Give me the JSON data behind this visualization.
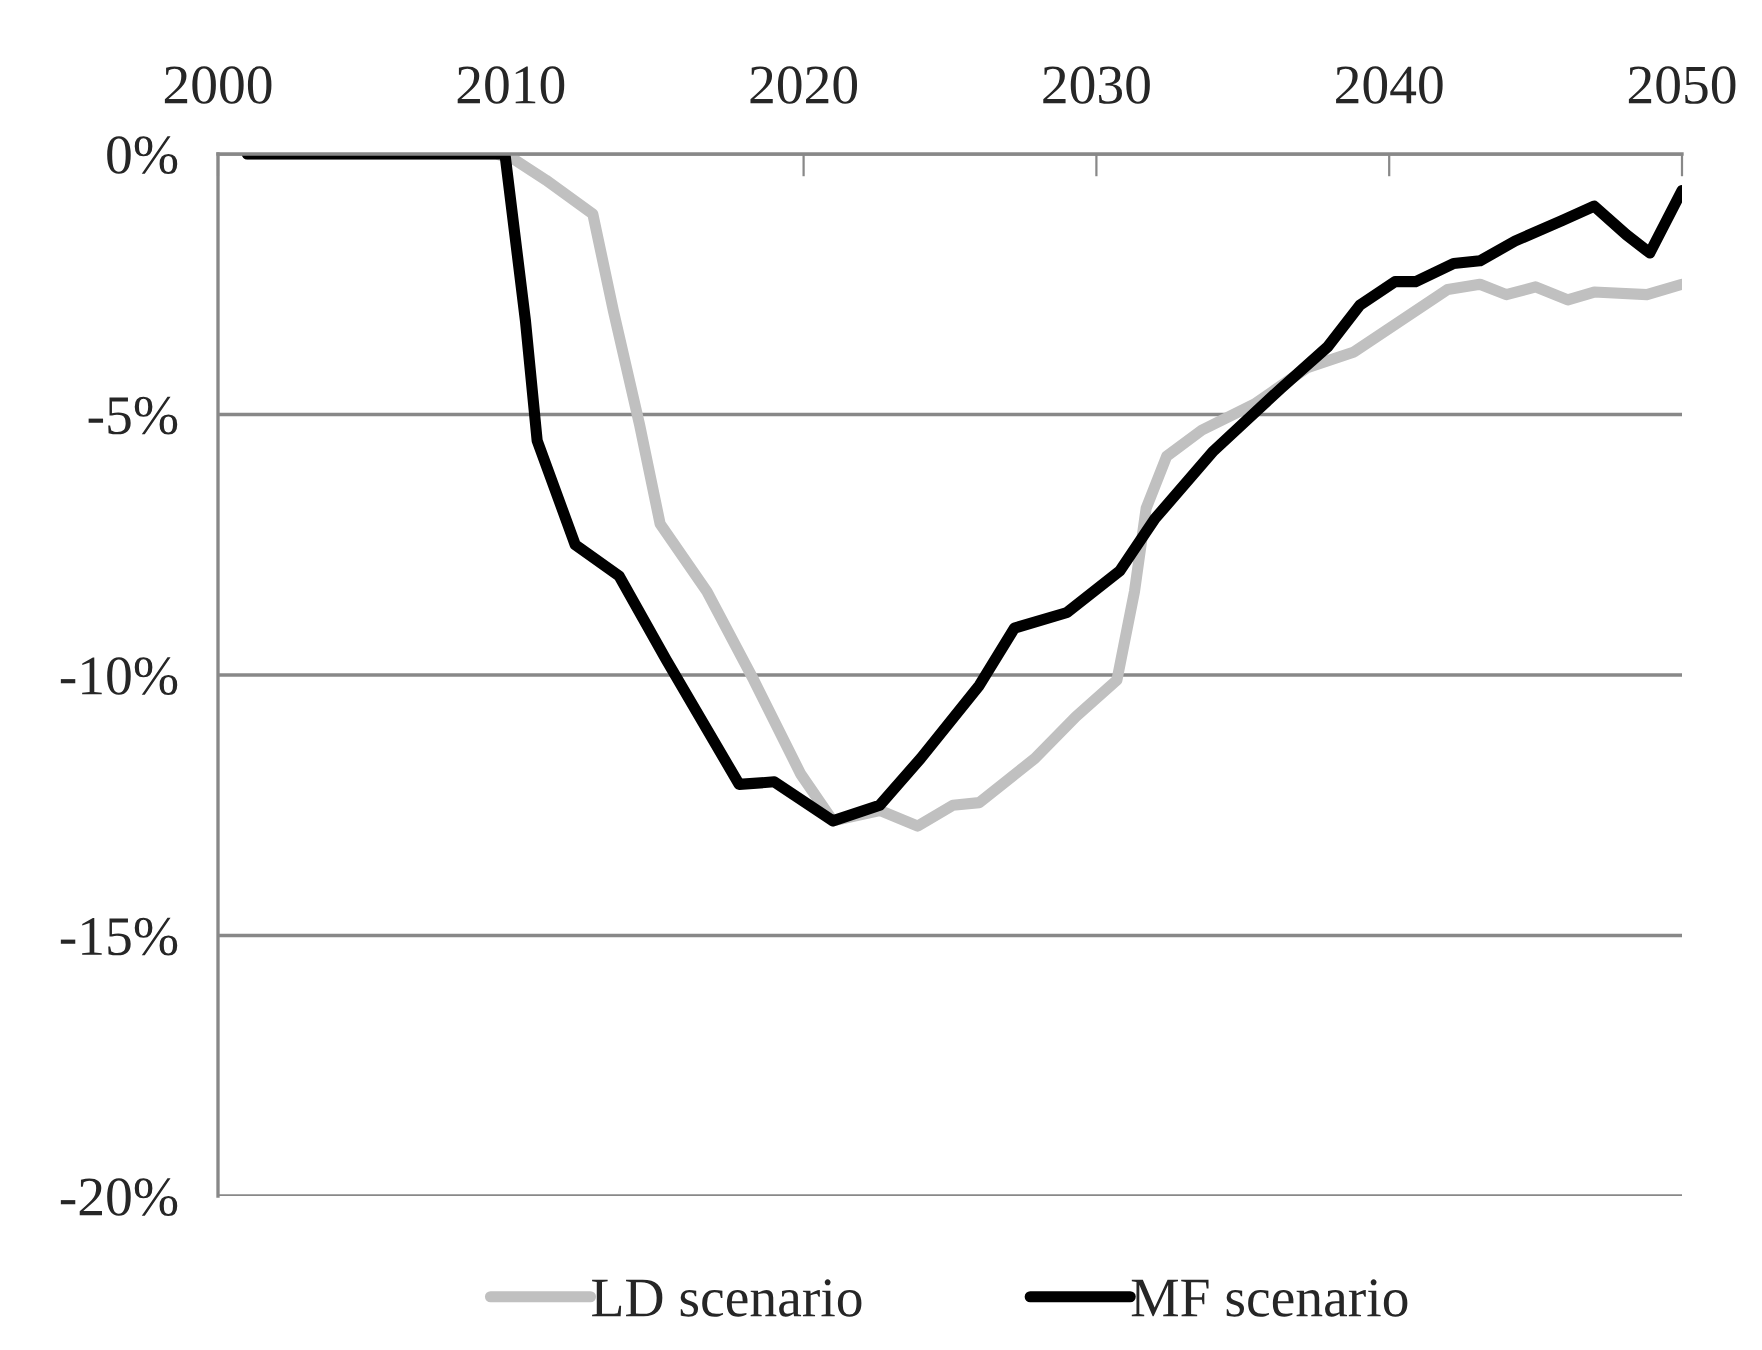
{
  "chart_data": {
    "type": "line",
    "xlim": [
      2000,
      2050
    ],
    "xticks": [
      2000,
      2010,
      2020,
      2030,
      2040,
      2050
    ],
    "ylim": [
      -20,
      0
    ],
    "yticks": [
      {
        "value": -20,
        "label": "-20%"
      },
      {
        "value": -15,
        "label": "-15%"
      },
      {
        "value": -10,
        "label": "-10%"
      },
      {
        "value": -5,
        "label": "-5%"
      },
      {
        "value": 0,
        "label": "0%"
      }
    ],
    "grid": "y",
    "legend": "bottom",
    "line_style": "solid",
    "marker": "none",
    "series": [
      {
        "name": "LD scenario",
        "color": "#c0c0c0",
        "x": [
          2001,
          2009.5,
          2010.1,
          2011.2,
          2012.8,
          2013.5,
          2014.4,
          2015.1,
          2016.7,
          2018.3,
          2019.9,
          2021,
          2022.6,
          2023.9,
          2025.1,
          2026,
          2027.9,
          2029.3,
          2030.7,
          2031.3,
          2031.7,
          2032.4,
          2033.6,
          2035.4,
          2037.2,
          2038.8,
          2040.4,
          2042,
          2043.1,
          2044,
          2045,
          2046.1,
          2047,
          2048.8,
          2050
        ],
        "values": [
          0,
          0,
          -0.1,
          -0.5,
          -1.15,
          -3.0,
          -5.2,
          -7.1,
          -8.4,
          -10.1,
          -11.9,
          -12.8,
          -12.6,
          -12.9,
          -12.5,
          -12.45,
          -11.6,
          -10.8,
          -10.1,
          -8.4,
          -6.8,
          -5.8,
          -5.3,
          -4.8,
          -4.1,
          -3.8,
          -3.2,
          -2.6,
          -2.5,
          -2.7,
          -2.55,
          -2.8,
          -2.65,
          -2.7,
          -2.5
        ]
      },
      {
        "name": "MF scenario",
        "color": "#000000",
        "x": [
          2001,
          2009.8,
          2010.5,
          2010.9,
          2012.2,
          2013.7,
          2015.3,
          2017.8,
          2019,
          2021,
          2022.6,
          2024,
          2026,
          2027.2,
          2029,
          2030.8,
          2032,
          2034,
          2036.3,
          2037.9,
          2039,
          2040.2,
          2040.9,
          2042.2,
          2043.1,
          2044.3,
          2045.9,
          2047,
          2048.1,
          2048.9,
          2050
        ],
        "values": [
          0,
          0,
          -3.2,
          -5.5,
          -7.5,
          -8.1,
          -9.7,
          -12.1,
          -12.05,
          -12.8,
          -12.5,
          -11.6,
          -10.2,
          -9.1,
          -8.8,
          -8.0,
          -7.0,
          -5.7,
          -4.5,
          -3.7,
          -2.9,
          -2.45,
          -2.45,
          -2.1,
          -2.05,
          -1.67,
          -1.28,
          -1.0,
          -1.55,
          -1.9,
          -0.7
        ]
      }
    ]
  }
}
